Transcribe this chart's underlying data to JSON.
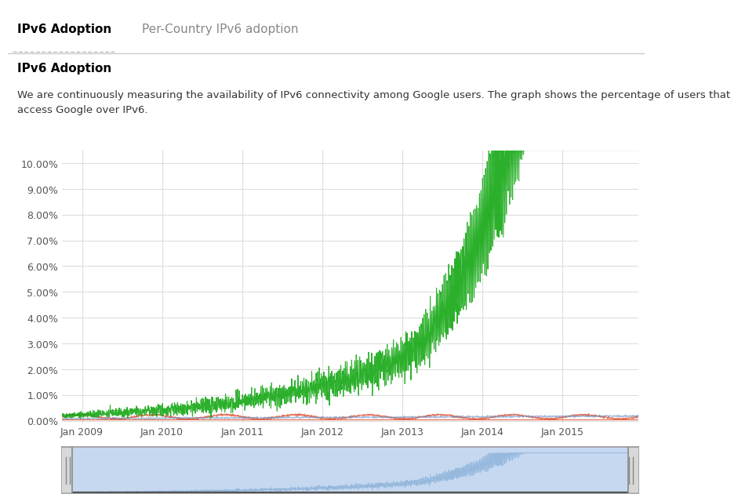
{
  "title_tab1": "IPv6 Adoption",
  "title_tab2": "Per-Country IPv6 adoption",
  "section_title": "IPv6 Adoption",
  "description": "We are continuously measuring the availability of IPv6 connectivity among Google users. The graph shows the percentage of users that\naccess Google over IPv6.",
  "x_start_year": 2008.75,
  "x_end_year": 2015.95,
  "y_min": -0.001,
  "y_max": 0.105,
  "yticks": [
    0.0,
    0.01,
    0.02,
    0.03,
    0.04,
    0.05,
    0.06,
    0.07,
    0.08,
    0.09,
    0.1
  ],
  "ytick_labels": [
    "0.00%",
    "1.00%",
    "2.00%",
    "3.00%",
    "4.00%",
    "5.00%",
    "6.00%",
    "7.00%",
    "8.00%",
    "9.00%",
    "10.00%"
  ],
  "xtick_years": [
    2009,
    2010,
    2011,
    2012,
    2013,
    2014,
    2015
  ],
  "xtick_labels": [
    "Jan 2009",
    "Jan 2010",
    "Jan 2011",
    "Jan 2012",
    "Jan 2013",
    "Jan 2014",
    "Jan 2015"
  ],
  "bg_color": "#ffffff",
  "plot_bg_color": "#ffffff",
  "grid_color": "#dddddd",
  "main_line_color": "#15a815",
  "alt_line1_color": "#e05030",
  "alt_line2_color": "#7090c0",
  "tab_active_color": "#000000",
  "tab_inactive_color": "#888888",
  "minimap_fill_color": "#c5d8f0",
  "minimap_line_color": "#8ab0d8",
  "tab_underline_color": "#bbbbbb",
  "separator_color": "#cccccc"
}
